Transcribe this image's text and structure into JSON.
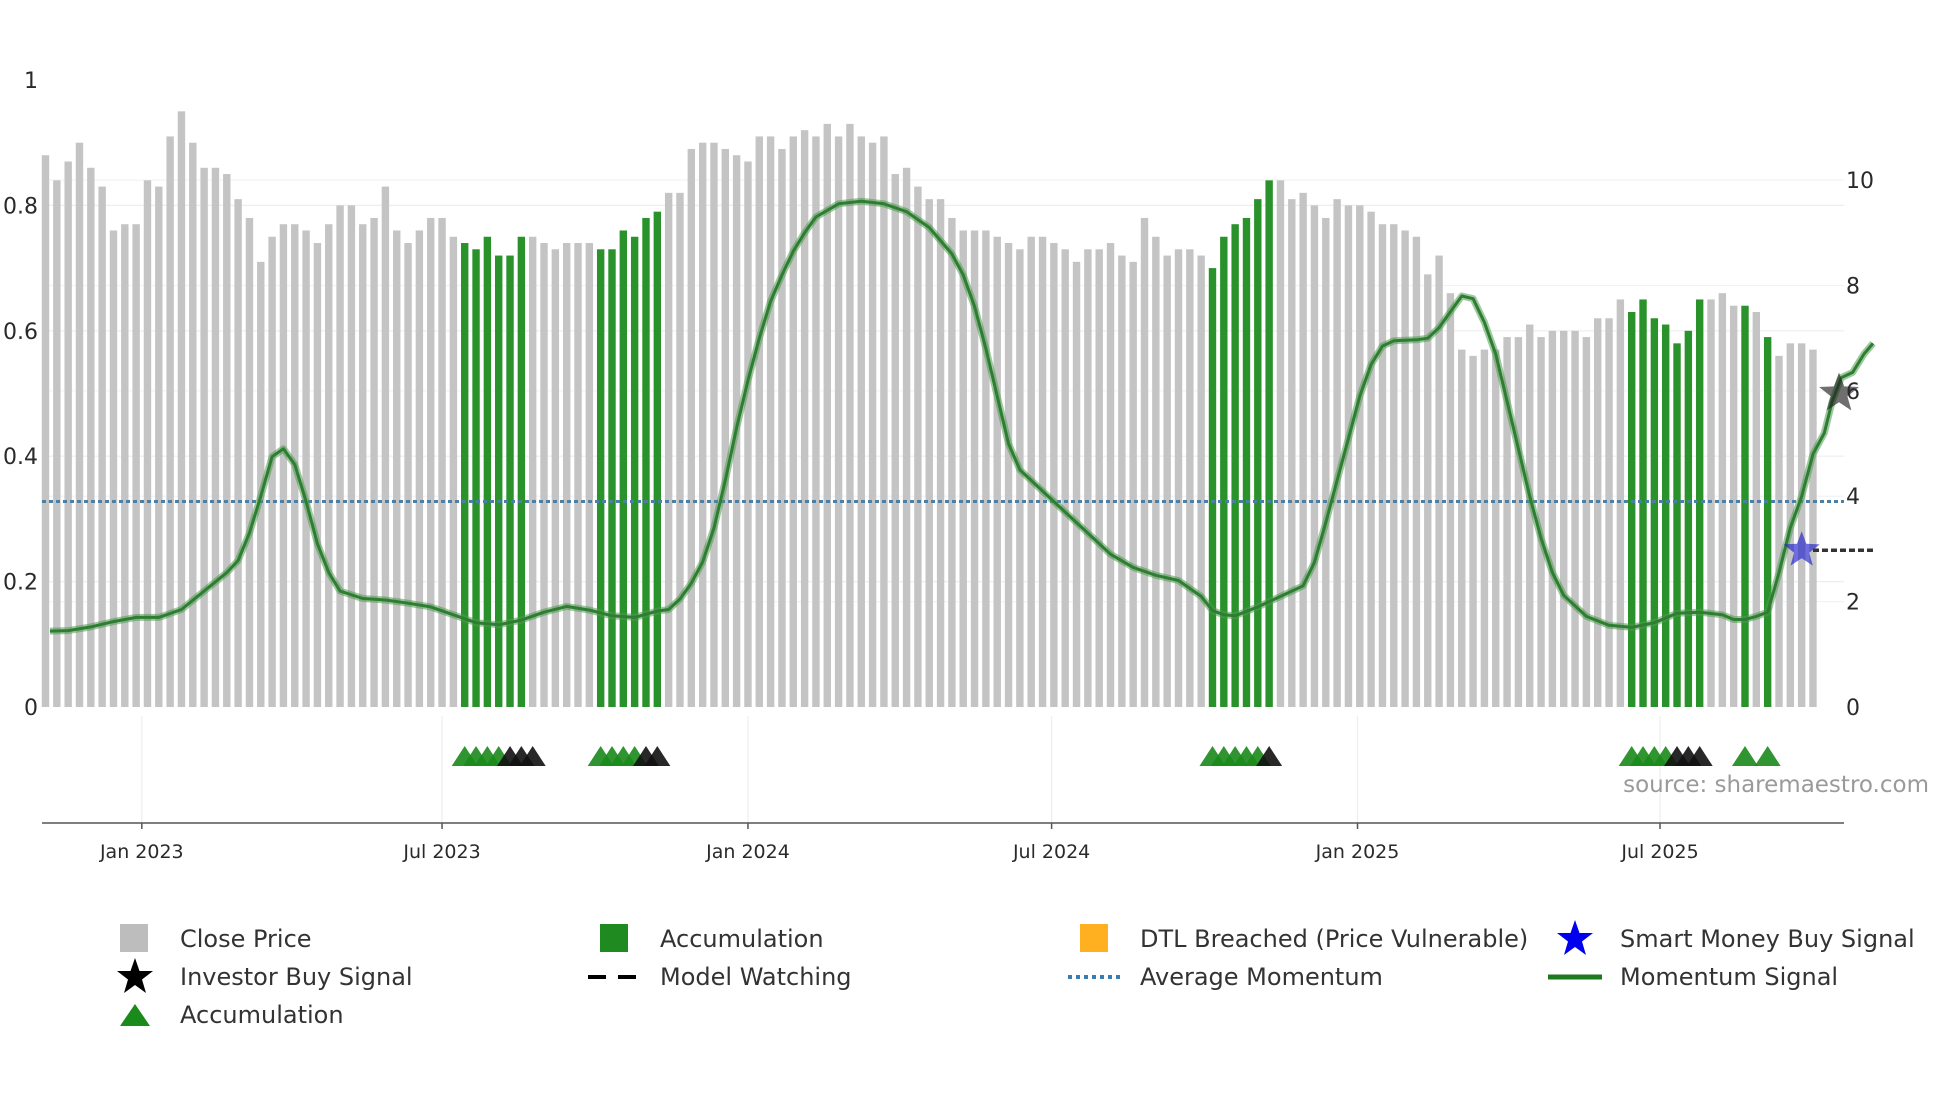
{
  "chart_data": {
    "type": "bar",
    "source_note": "source: sharemaestro.com",
    "left_axis": {
      "range": [
        0,
        1
      ],
      "ticks": [
        0,
        0.2,
        0.4,
        0.6,
        0.8,
        1
      ],
      "tick_labels": [
        "0",
        "0.2",
        "0.4",
        "0.6",
        "0.8",
        "1"
      ]
    },
    "right_axis": {
      "range": [
        0,
        11.9
      ],
      "ticks": [
        0,
        2,
        4,
        6,
        8,
        10
      ],
      "tick_labels": [
        "0",
        "2",
        "4",
        "6",
        "8",
        "10"
      ]
    },
    "x_axis": {
      "start_week": 0,
      "end_week": 161.5,
      "ticks": [
        {
          "label": "Jan 2023",
          "week": 8.5
        },
        {
          "label": "Jul 2023",
          "week": 35
        },
        {
          "label": "Jan 2024",
          "week": 62
        },
        {
          "label": "Jul 2024",
          "week": 88.8
        },
        {
          "label": "Jan 2025",
          "week": 115.8
        },
        {
          "label": "Jul 2025",
          "week": 142.5
        }
      ]
    },
    "close_price": [
      0.88,
      0.84,
      0.87,
      0.9,
      0.86,
      0.83,
      0.76,
      0.77,
      0.77,
      0.84,
      0.83,
      0.91,
      0.95,
      0.9,
      0.86,
      0.86,
      0.85,
      0.81,
      0.78,
      0.71,
      0.75,
      0.77,
      0.77,
      0.76,
      0.74,
      0.77,
      0.8,
      0.8,
      0.77,
      0.78,
      0.83,
      0.76,
      0.74,
      0.76,
      0.78,
      0.78,
      0.75,
      0.74,
      0.73,
      0.75,
      0.72,
      0.72,
      0.75,
      0.75,
      0.74,
      0.73,
      0.74,
      0.74,
      0.74,
      0.73,
      0.73,
      0.76,
      0.75,
      0.78,
      0.79,
      0.82,
      0.82,
      0.89,
      0.9,
      0.9,
      0.89,
      0.88,
      0.87,
      0.91,
      0.91,
      0.89,
      0.91,
      0.92,
      0.91,
      0.93,
      0.91,
      0.93,
      0.91,
      0.9,
      0.91,
      0.85,
      0.86,
      0.83,
      0.81,
      0.81,
      0.78,
      0.76,
      0.76,
      0.76,
      0.75,
      0.74,
      0.73,
      0.75,
      0.75,
      0.74,
      0.73,
      0.71,
      0.73,
      0.73,
      0.74,
      0.72,
      0.71,
      0.78,
      0.75,
      0.72,
      0.73,
      0.73,
      0.72,
      0.7,
      0.75,
      0.77,
      0.78,
      0.81,
      0.84,
      0.84,
      0.81,
      0.82,
      0.8,
      0.78,
      0.81,
      0.8,
      0.8,
      0.79,
      0.77,
      0.77,
      0.76,
      0.75,
      0.69,
      0.72,
      0.66,
      0.57,
      0.56,
      0.57,
      0.57,
      0.59,
      0.59,
      0.61,
      0.59,
      0.6,
      0.6,
      0.6,
      0.59,
      0.62,
      0.62,
      0.65,
      0.63,
      0.65,
      0.62,
      0.61,
      0.58,
      0.6,
      0.65,
      0.65,
      0.66,
      0.64,
      0.64,
      0.63,
      0.59,
      0.56,
      0.58,
      0.58,
      0.57
    ],
    "accumulation_weeks": [
      37,
      38,
      39,
      40,
      41,
      42,
      49,
      50,
      51,
      52,
      53,
      54,
      103,
      104,
      105,
      106,
      107,
      108,
      140,
      141,
      142,
      143,
      144,
      145,
      146,
      150,
      152
    ],
    "momentum_signal": [
      [
        0.4,
        1.44
      ],
      [
        2,
        1.45
      ],
      [
        4,
        1.52
      ],
      [
        6,
        1.62
      ],
      [
        8,
        1.7
      ],
      [
        10,
        1.7
      ],
      [
        12,
        1.85
      ],
      [
        14,
        2.2
      ],
      [
        16,
        2.55
      ],
      [
        17,
        2.78
      ],
      [
        18,
        3.3
      ],
      [
        19,
        4.0
      ],
      [
        20,
        4.75
      ],
      [
        21,
        4.9
      ],
      [
        22,
        4.6
      ],
      [
        23,
        3.9
      ],
      [
        24,
        3.1
      ],
      [
        25,
        2.55
      ],
      [
        26,
        2.2
      ],
      [
        28,
        2.06
      ],
      [
        30,
        2.03
      ],
      [
        32,
        1.97
      ],
      [
        34,
        1.9
      ],
      [
        36,
        1.75
      ],
      [
        38,
        1.6
      ],
      [
        40,
        1.56
      ],
      [
        42,
        1.65
      ],
      [
        44,
        1.8
      ],
      [
        46,
        1.91
      ],
      [
        48,
        1.84
      ],
      [
        50,
        1.73
      ],
      [
        52,
        1.7
      ],
      [
        54,
        1.82
      ],
      [
        55,
        1.85
      ],
      [
        56,
        2.05
      ],
      [
        57,
        2.35
      ],
      [
        58,
        2.75
      ],
      [
        59,
        3.4
      ],
      [
        60,
        4.3
      ],
      [
        61,
        5.3
      ],
      [
        62,
        6.2
      ],
      [
        63,
        7.0
      ],
      [
        64,
        7.7
      ],
      [
        65,
        8.2
      ],
      [
        66,
        8.65
      ],
      [
        67,
        9.0
      ],
      [
        68,
        9.3
      ],
      [
        70,
        9.55
      ],
      [
        72,
        9.6
      ],
      [
        74,
        9.55
      ],
      [
        76,
        9.4
      ],
      [
        78,
        9.1
      ],
      [
        80,
        8.6
      ],
      [
        81,
        8.2
      ],
      [
        82,
        7.6
      ],
      [
        83,
        6.8
      ],
      [
        84,
        5.9
      ],
      [
        85,
        5.0
      ],
      [
        86,
        4.5
      ],
      [
        87,
        4.3
      ],
      [
        88,
        4.1
      ],
      [
        90,
        3.7
      ],
      [
        92,
        3.3
      ],
      [
        94,
        2.9
      ],
      [
        96,
        2.65
      ],
      [
        98,
        2.5
      ],
      [
        100,
        2.4
      ],
      [
        102,
        2.1
      ],
      [
        103,
        1.83
      ],
      [
        104,
        1.75
      ],
      [
        105,
        1.73
      ],
      [
        107,
        1.9
      ],
      [
        109,
        2.1
      ],
      [
        111,
        2.3
      ],
      [
        112,
        2.75
      ],
      [
        113,
        3.5
      ],
      [
        114,
        4.3
      ],
      [
        115,
        5.1
      ],
      [
        116,
        5.9
      ],
      [
        117,
        6.5
      ],
      [
        118,
        6.85
      ],
      [
        119,
        6.95
      ],
      [
        121,
        6.97
      ],
      [
        122,
        7.0
      ],
      [
        123,
        7.2
      ],
      [
        124,
        7.5
      ],
      [
        125,
        7.8
      ],
      [
        126,
        7.75
      ],
      [
        127,
        7.3
      ],
      [
        128,
        6.7
      ],
      [
        129,
        5.8
      ],
      [
        130,
        4.9
      ],
      [
        131,
        4.0
      ],
      [
        132,
        3.2
      ],
      [
        133,
        2.55
      ],
      [
        134,
        2.12
      ],
      [
        136,
        1.72
      ],
      [
        138,
        1.55
      ],
      [
        140,
        1.51
      ],
      [
        142,
        1.6
      ],
      [
        144,
        1.78
      ],
      [
        146,
        1.8
      ],
      [
        148,
        1.75
      ],
      [
        149,
        1.66
      ],
      [
        150,
        1.66
      ],
      [
        151,
        1.72
      ],
      [
        152,
        1.8
      ],
      [
        153,
        2.55
      ],
      [
        154,
        3.4
      ],
      [
        155,
        4.0
      ],
      [
        156,
        4.8
      ],
      [
        157,
        5.2
      ],
      [
        157.7,
        5.8
      ],
      [
        158.5,
        6.25
      ],
      [
        159.5,
        6.35
      ],
      [
        160.5,
        6.7
      ],
      [
        161.3,
        6.9
      ]
    ],
    "average_momentum": 3.9,
    "model_watching": {
      "start_week": 156,
      "end_week": 161.3,
      "value": 0.25
    },
    "investor_buy_signal": {
      "week": 158.3,
      "value": 0.5
    },
    "smart_money_buy_signal": {
      "week": 155,
      "value": 0.25
    },
    "accumulation_markers": [
      37,
      38,
      39,
      40,
      41,
      42,
      43,
      49,
      50,
      51,
      52,
      53,
      54,
      103,
      104,
      105,
      106,
      107,
      108,
      140,
      141,
      142,
      143,
      144,
      145,
      146,
      150,
      152
    ],
    "accumulation_marker_colors": [
      "green",
      "green",
      "green",
      "green",
      "black",
      "black",
      "black",
      "green",
      "green",
      "green",
      "green",
      "black",
      "black",
      "green",
      "green",
      "green",
      "green",
      "green",
      "black",
      "green",
      "green",
      "green",
      "green",
      "black",
      "black",
      "black",
      "green",
      "green"
    ]
  },
  "legend": [
    {
      "label": "Close Price",
      "icon": "square-icon",
      "color": "#bdbdbd"
    },
    {
      "label": "Accumulation",
      "icon": "square-icon",
      "color": "#1f8a1f"
    },
    {
      "label": "DTL Breached (Price Vulnerable)",
      "icon": "square-icon",
      "color": "#ffb020"
    },
    {
      "label": "Smart Money Buy Signal",
      "icon": "star-icon",
      "color": "#0000ee"
    },
    {
      "label": "Investor Buy Signal",
      "icon": "star-icon",
      "color": "#000000"
    },
    {
      "label": "Model Watching",
      "icon": "dash-line-icon",
      "color": "#000000"
    },
    {
      "label": "Average Momentum",
      "icon": "dot-line-icon",
      "color": "#3b7cb0"
    },
    {
      "label": "Momentum Signal",
      "icon": "solid-line-icon",
      "color": "#2e7d32"
    },
    {
      "label": "Accumulation",
      "icon": "triangle-icon",
      "color": "#1a8a1a"
    }
  ],
  "colors": {
    "close_price": "#c4c4c4",
    "accumulation_bar": "#2a922a",
    "momentum": "#2e7d32",
    "average_momentum": "#4a7fa8",
    "grid": "#eeeeee",
    "axis": "#555555"
  }
}
